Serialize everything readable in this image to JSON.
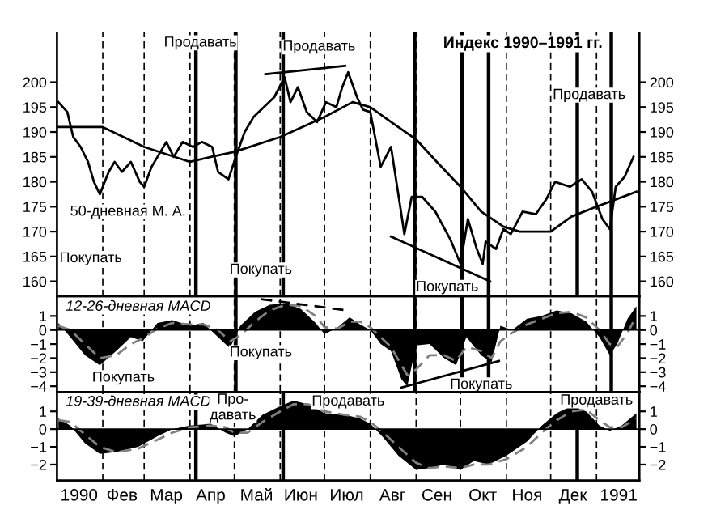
{
  "chart_data": [
    {
      "type": "line",
      "title": "Индекс 1990–1991 гг.",
      "tick_labels": "y",
      "xlim": [
        "1990-01-01",
        "1991-01-30"
      ],
      "ylim": [
        157,
        210
      ],
      "yticks": [
        160,
        165,
        170,
        175,
        180,
        185,
        190,
        195,
        200
      ],
      "y2lim": [
        157,
        210
      ],
      "y2ticks": [
        160,
        165,
        170,
        175,
        180,
        185,
        190,
        195,
        200
      ],
      "series": [
        {
          "type": "line",
          "color": "#000000",
          "x": [
            "1990-01-02",
            "1990-01-08",
            "1990-01-12",
            "1990-01-17",
            "1990-01-22",
            "1990-01-26",
            "1990-01-30",
            "1990-02-05",
            "1990-02-09",
            "1990-02-14",
            "1990-02-20",
            "1990-02-26",
            "1990-03-01",
            "1990-03-06",
            "1990-03-12",
            "1990-03-16",
            "1990-03-21",
            "1990-03-27",
            "1990-04-03",
            "1990-04-09",
            "1990-04-16",
            "1990-04-20",
            "1990-04-27",
            "1990-05-02",
            "1990-05-08",
            "1990-05-14",
            "1990-05-21",
            "1990-05-28",
            "1990-06-04",
            "1990-06-08",
            "1990-06-13",
            "1990-06-19",
            "1990-06-26",
            "1990-07-02",
            "1990-07-09",
            "1990-07-13",
            "1990-07-17",
            "1990-07-23",
            "1990-07-27",
            "1990-08-01",
            "1990-08-08",
            "1990-08-15",
            "1990-08-22",
            "1990-08-24",
            "1990-08-29",
            "1990-09-05",
            "1990-09-14",
            "1990-09-24",
            "1990-10-01",
            "1990-10-06",
            "1990-10-12",
            "1990-10-16",
            "1990-10-18",
            "1990-10-25",
            "1990-10-30",
            "1990-11-04",
            "1990-11-12",
            "1990-11-21",
            "1990-11-28",
            "1990-12-04",
            "1990-12-14",
            "1990-12-22",
            "1990-12-29",
            "1991-01-05",
            "1991-01-10",
            "1991-01-14",
            "1991-01-20",
            "1991-01-26"
          ],
          "values": [
            196,
            194,
            189,
            187,
            184,
            180,
            177.5,
            182,
            184,
            182,
            184,
            180,
            179,
            183,
            186,
            188,
            185,
            188,
            187,
            188,
            187,
            182,
            180.5,
            185,
            190,
            193,
            195,
            197,
            201,
            196,
            199,
            194,
            192,
            196,
            195,
            199,
            202,
            197,
            194.5,
            194,
            183,
            187,
            173.5,
            169.5,
            177,
            177,
            174,
            168.5,
            163.5,
            172.5,
            166.5,
            163.5,
            168,
            166.5,
            170.5,
            169.5,
            174,
            173.5,
            176.5,
            180,
            179,
            180.5,
            178,
            172.5,
            170.5,
            179,
            181,
            185
          ]
        },
        {
          "type": "line",
          "color": "#000000",
          "x": [
            "1990-01-02",
            "1990-02-01",
            "1990-03-01",
            "1990-04-01",
            "1990-04-15",
            "1990-05-01",
            "1990-06-01",
            "1990-07-01",
            "1990-07-20",
            "1990-08-01",
            "1990-08-15",
            "1990-09-01",
            "1990-09-15",
            "1990-10-01",
            "1990-10-15",
            "1990-10-30",
            "1990-11-10",
            "1990-12-01",
            "1990-12-15",
            "1991-01-01",
            "1991-01-28"
          ],
          "values": [
            191,
            191,
            187,
            184,
            185,
            186,
            189,
            193,
            196,
            195,
            192,
            188.5,
            184,
            179,
            174,
            171,
            170,
            170,
            173,
            175,
            178
          ]
        },
        {
          "type": "line",
          "color": "#000000",
          "x": [
            "1990-05-22",
            "1990-07-15"
          ],
          "values": [
            201.6,
            203.3
          ]
        },
        {
          "type": "line",
          "color": "#000000",
          "x": [
            "1990-08-15",
            "1990-10-21"
          ],
          "values": [
            169,
            160
          ]
        }
      ],
      "ref_lines": [
        {
          "axis": "x",
          "value": "1990-02-01",
          "line_style": "dashed"
        },
        {
          "axis": "x",
          "value": "1990-03-01",
          "line_style": "dashed"
        },
        {
          "axis": "x",
          "value": "1990-04-01",
          "line_style": "dashed"
        },
        {
          "axis": "x",
          "value": "1990-05-01",
          "line_style": "dashed"
        },
        {
          "axis": "x",
          "value": "1990-06-01",
          "line_style": "dashed"
        },
        {
          "axis": "x",
          "value": "1990-07-01",
          "line_style": "dashed"
        },
        {
          "axis": "x",
          "value": "1990-08-01",
          "line_style": "dashed"
        },
        {
          "axis": "x",
          "value": "1990-09-01",
          "line_style": "dashed"
        },
        {
          "axis": "x",
          "value": "1990-10-01",
          "line_style": "dashed"
        },
        {
          "axis": "x",
          "value": "1990-11-01",
          "line_style": "dashed"
        },
        {
          "axis": "x",
          "value": "1990-12-01",
          "line_style": "dashed"
        },
        {
          "axis": "x",
          "value": "1991-01-01",
          "line_style": "dashed"
        },
        {
          "axis": "x",
          "value": "1990-04-05",
          "line_style": "solid"
        },
        {
          "axis": "x",
          "value": "1990-05-02",
          "line_style": "solid"
        },
        {
          "axis": "x",
          "value": "1990-06-03",
          "line_style": "solid"
        },
        {
          "axis": "x",
          "value": "1990-08-31",
          "line_style": "solid"
        },
        {
          "axis": "x",
          "value": "1990-10-02",
          "line_style": "solid"
        },
        {
          "axis": "x",
          "value": "1990-10-20",
          "line_style": "solid"
        },
        {
          "axis": "x",
          "value": "1990-12-19",
          "line_style": "solid"
        },
        {
          "axis": "x",
          "value": "1991-01-11",
          "line_style": "solid"
        }
      ],
      "annotations": [
        {
          "text": "Продавать",
          "x": "1990-04-08",
          "y": 207.9
        },
        "Продавать",
        {
          "text": "Продавать",
          "x": "1990-12-27",
          "y": 197.4
        },
        "Покупать",
        "Покупать",
        "Покупать",
        "50-дневная М. А."
      ]
    },
    {
      "type": "area",
      "tick_labels": "y",
      "xlim": [
        "1990-01-01",
        "1991-01-30"
      ],
      "ylim": [
        -4.4,
        2.4
      ],
      "yticks": [
        {
          "value": 1,
          "label": "1"
        },
        {
          "value": 0,
          "label": "0"
        },
        {
          "value": -1,
          "label": "−1"
        },
        {
          "value": -2,
          "label": "−2"
        },
        {
          "value": -3,
          "label": "−3"
        },
        {
          "value": -4,
          "label": "−4"
        }
      ],
      "y2lim": [
        -4.4,
        2.4
      ],
      "y2ticks": [
        {
          "value": 1,
          "label": "1"
        },
        {
          "value": 0,
          "label": "0"
        },
        {
          "value": -1,
          "label": "−1"
        },
        {
          "value": -2,
          "label": "−2"
        },
        {
          "value": -3,
          "label": "−3"
        },
        {
          "value": -4,
          "label": "−4"
        }
      ],
      "x": [
        "1990-01-02",
        "1990-01-10",
        "1990-01-20",
        "1990-01-30",
        "1990-02-10",
        "1990-02-20",
        "1990-02-28",
        "1990-03-10",
        "1990-03-20",
        "1990-04-01",
        "1990-04-10",
        "1990-04-20",
        "1990-04-28",
        "1990-05-05",
        "1990-05-15",
        "1990-05-25",
        "1990-06-05",
        "1990-06-15",
        "1990-06-25",
        "1990-07-01",
        "1990-07-10",
        "1990-07-18",
        "1990-07-25",
        "1990-08-01",
        "1990-08-08",
        "1990-08-15",
        "1990-08-22",
        "1990-08-26",
        "1990-09-01",
        "1990-09-10",
        "1990-09-20",
        "1990-09-28",
        "1990-10-05",
        "1990-10-15",
        "1990-10-22",
        "1990-10-28",
        "1990-11-05",
        "1990-11-15",
        "1990-11-25",
        "1990-12-05",
        "1990-12-15",
        "1990-12-25",
        "1991-01-03",
        "1991-01-10",
        "1991-01-15",
        "1991-01-22",
        "1991-01-28"
      ],
      "series": [
        {
          "type": "area",
          "color": "#000000",
          "values": [
            0.5,
            -0.5,
            -1.8,
            -2.5,
            -1.5,
            -0.5,
            -0.8,
            0.5,
            0.7,
            0.3,
            0.5,
            -0.5,
            -1.3,
            0.3,
            1.3,
            1.8,
            1.9,
            1.5,
            0.5,
            -0.3,
            0.2,
            0.9,
            0.4,
            0,
            -1.0,
            -1.5,
            -3.5,
            -4.0,
            -1.1,
            -1.0,
            -2.0,
            -2.5,
            -0.5,
            -1.8,
            -2.3,
            0.3,
            0,
            0.8,
            1.0,
            1.4,
            1.2,
            0.6,
            -0.5,
            -1.8,
            -1.0,
            0.8,
            1.7
          ]
        },
        {
          "type": "line",
          "color": "#808080",
          "line_style": "dashed",
          "values": [
            0.3,
            0,
            -1.0,
            -2.0,
            -1.8,
            -1.0,
            -0.6,
            0.1,
            0.5,
            0.4,
            0.4,
            0,
            -0.8,
            -0.4,
            0.6,
            1.4,
            1.8,
            1.7,
            1.0,
            0.2,
            0.1,
            0.6,
            0.6,
            0.2,
            -0.5,
            -1.2,
            -2.5,
            -3.2,
            -2.8,
            -1.8,
            -1.8,
            -2.2,
            -1.2,
            -1.5,
            -2.0,
            -0.8,
            -0.2,
            0.4,
            0.8,
            1.2,
            1.3,
            0.9,
            0,
            -1.0,
            -1.2,
            -0.2,
            1.0
          ]
        },
        {
          "type": "line",
          "color": "#000000",
          "line_style": "dashed",
          "x": [
            "1990-05-19",
            "1990-07-16"
          ],
          "values": [
            2.2,
            1.4
          ]
        },
        {
          "type": "line",
          "color": "#000000",
          "line_style": "solid",
          "x": [
            "1990-08-22",
            "1990-10-27"
          ],
          "values": [
            -4.1,
            -2.2
          ]
        }
      ],
      "ref_lines": [
        {
          "axis": "x",
          "value": "1990-02-01",
          "line_style": "dashed"
        },
        {
          "axis": "x",
          "value": "1990-03-01",
          "line_style": "dashed"
        },
        {
          "axis": "x",
          "value": "1990-04-01",
          "line_style": "dashed"
        },
        {
          "axis": "x",
          "value": "1990-05-01",
          "line_style": "dashed"
        },
        {
          "axis": "x",
          "value": "1990-06-01",
          "line_style": "dashed"
        },
        {
          "axis": "x",
          "value": "1990-07-01",
          "line_style": "dashed"
        },
        {
          "axis": "x",
          "value": "1990-08-01",
          "line_style": "dashed"
        },
        {
          "axis": "x",
          "value": "1990-09-01",
          "line_style": "dashed"
        },
        {
          "axis": "x",
          "value": "1990-10-01",
          "line_style": "dashed"
        },
        {
          "axis": "x",
          "value": "1990-11-01",
          "line_style": "dashed"
        },
        {
          "axis": "x",
          "value": "1990-12-01",
          "line_style": "dashed"
        },
        {
          "axis": "x",
          "value": "1991-01-01",
          "line_style": "dashed"
        },
        {
          "axis": "x",
          "value": "1990-05-02",
          "line_style": "solid"
        },
        {
          "axis": "x",
          "value": "1990-08-31",
          "line_style": "solid"
        },
        {
          "axis": "x",
          "value": "1990-10-02",
          "line_style": "solid"
        },
        {
          "axis": "x",
          "value": "1990-10-20",
          "line_style": "solid"
        },
        {
          "axis": "x",
          "value": "1991-01-11",
          "line_style": "solid"
        }
      ],
      "annotations": [
        "12-26-дневная MACD",
        "Покупать",
        "Покупать",
        {
          "text": "Покупать",
          "x": "1990-10-15",
          "y": -3.9
        }
      ]
    },
    {
      "type": "area",
      "xlim": [
        "1990-01-01",
        "1991-01-30"
      ],
      "ylim": [
        -2.9,
        2.1
      ],
      "yticks": [
        {
          "value": 1,
          "label": "1"
        },
        {
          "value": 0,
          "label": "0"
        },
        {
          "value": -1,
          "label": "−1"
        },
        {
          "value": -2,
          "label": "−2"
        }
      ],
      "y2lim": [
        -2.9,
        2.1
      ],
      "y2ticks": [
        {
          "value": 1,
          "label": "1"
        },
        {
          "value": 0,
          "label": "0"
        },
        {
          "value": -1,
          "label": "−1"
        },
        {
          "value": -2,
          "label": "−2"
        }
      ],
      "xticks": [
        {
          "value": "1990-01-16",
          "label": "1990"
        },
        {
          "value": "1990-02-14",
          "label": "Фев"
        },
        {
          "value": "1990-03-16",
          "label": "Мар"
        },
        {
          "value": "1990-04-15",
          "label": "Апр"
        },
        {
          "value": "1990-05-16",
          "label": "Май"
        },
        {
          "value": "1990-06-15",
          "label": "Июн"
        },
        {
          "value": "1990-07-16",
          "label": "Июл"
        },
        {
          "value": "1990-08-16",
          "label": "Авг"
        },
        {
          "value": "1990-09-15",
          "label": "Сен"
        },
        {
          "value": "1990-10-16",
          "label": "Окт"
        },
        {
          "value": "1990-11-15",
          "label": "Ноя"
        },
        {
          "value": "1990-12-16",
          "label": "Дек"
        },
        {
          "value": "1991-01-16",
          "label": "1991"
        }
      ],
      "x": [
        "1990-01-02",
        "1990-01-10",
        "1990-01-20",
        "1990-01-30",
        "1990-02-10",
        "1990-02-25",
        "1990-03-10",
        "1990-03-20",
        "1990-04-01",
        "1990-04-15",
        "1990-04-25",
        "1990-05-01",
        "1990-05-10",
        "1990-05-20",
        "1990-06-01",
        "1990-06-10",
        "1990-06-20",
        "1990-07-01",
        "1990-07-15",
        "1990-07-25",
        "1990-08-01",
        "1990-08-10",
        "1990-08-20",
        "1990-09-01",
        "1990-09-10",
        "1990-09-20",
        "1990-10-01",
        "1990-10-10",
        "1990-10-20",
        "1990-11-01",
        "1990-11-15",
        "1990-11-25",
        "1990-12-05",
        "1990-12-15",
        "1990-12-25",
        "1991-01-03",
        "1991-01-10",
        "1991-01-18",
        "1991-01-28"
      ],
      "series": [
        {
          "type": "area",
          "color": "#000000",
          "values": [
            0.6,
            0.2,
            -0.8,
            -1.4,
            -1.3,
            -1.0,
            -0.4,
            0,
            0.2,
            0.3,
            -0.2,
            -0.4,
            0,
            0.8,
            1.3,
            1.6,
            1.4,
            0.9,
            0.8,
            0.6,
            0.3,
            -0.5,
            -1.5,
            -2.3,
            -2.2,
            -2.0,
            -2.3,
            -1.8,
            -2.0,
            -1.5,
            -0.7,
            0.2,
            0.9,
            1.3,
            1.0,
            0.2,
            -0.1,
            0.2,
            0.9
          ]
        },
        {
          "type": "line",
          "color": "#808080",
          "line_style": "dashed",
          "values": [
            0.5,
            0.4,
            -0.3,
            -1.0,
            -1.3,
            -1.1,
            -0.6,
            -0.2,
            0.1,
            0.2,
            0.1,
            -0.2,
            -0.2,
            0.4,
            1.0,
            1.4,
            1.4,
            1.0,
            0.8,
            0.7,
            0.4,
            -0.2,
            -1.0,
            -1.9,
            -2.2,
            -2.1,
            -2.2,
            -2.0,
            -2.0,
            -1.7,
            -1.0,
            -0.2,
            0.5,
            1.0,
            1.1,
            0.5,
            0.1,
            0.1,
            0.6
          ]
        }
      ],
      "ref_lines": [
        {
          "axis": "x",
          "value": "1990-02-01",
          "line_style": "dashed"
        },
        {
          "axis": "x",
          "value": "1990-03-01",
          "line_style": "dashed"
        },
        {
          "axis": "x",
          "value": "1990-04-01",
          "line_style": "dashed"
        },
        {
          "axis": "x",
          "value": "1990-05-01",
          "line_style": "dashed"
        },
        {
          "axis": "x",
          "value": "1990-06-01",
          "line_style": "dashed"
        },
        {
          "axis": "x",
          "value": "1990-07-01",
          "line_style": "dashed"
        },
        {
          "axis": "x",
          "value": "1990-08-01",
          "line_style": "dashed"
        },
        {
          "axis": "x",
          "value": "1990-09-01",
          "line_style": "dashed"
        },
        {
          "axis": "x",
          "value": "1990-10-01",
          "line_style": "dashed"
        },
        {
          "axis": "x",
          "value": "1990-11-01",
          "line_style": "dashed"
        },
        {
          "axis": "x",
          "value": "1990-12-01",
          "line_style": "dashed"
        },
        {
          "axis": "x",
          "value": "1991-01-01",
          "line_style": "dashed"
        },
        {
          "axis": "x",
          "value": "1990-04-05",
          "line_style": "solid"
        },
        {
          "axis": "x",
          "value": "1990-06-03",
          "line_style": "solid"
        },
        {
          "axis": "x",
          "value": "1990-12-19",
          "line_style": "solid"
        }
      ],
      "annotations": [
        "19-39-дневная MACD",
        {
          "text": "Про-\nдавать",
          "x": "1990-04-30",
          "y": 1.2
        },
        "Продавать",
        {
          "text": "Продавать",
          "x": "1991-01-01",
          "y": 1.6
        }
      ]
    }
  ]
}
